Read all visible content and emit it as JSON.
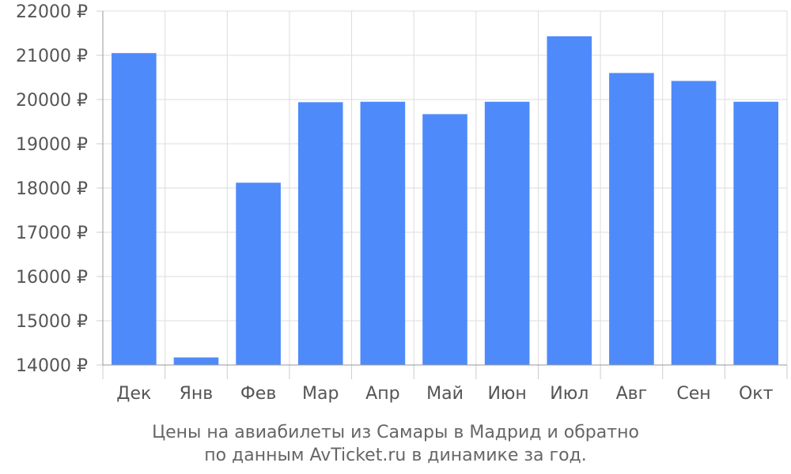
{
  "chart_data": {
    "type": "bar",
    "categories": [
      "Дек",
      "Янв",
      "Фев",
      "Мар",
      "Апр",
      "Май",
      "Июн",
      "Июл",
      "Авг",
      "Сен",
      "Окт"
    ],
    "values": [
      21050,
      14170,
      18120,
      19940,
      19950,
      19670,
      19950,
      21430,
      20600,
      20420,
      19950
    ],
    "ylim": [
      14000,
      22000
    ],
    "yticks": [
      14000,
      15000,
      16000,
      17000,
      18000,
      19000,
      20000,
      21000,
      22000
    ],
    "currency_suffix": " ₽",
    "bar_color": "#4e8afa",
    "grid": true,
    "title_lines": [
      "Цены на авиабилеты из Самары в Мадрид и обратно",
      "по данным AvTicket.ru в динамике за год."
    ]
  }
}
